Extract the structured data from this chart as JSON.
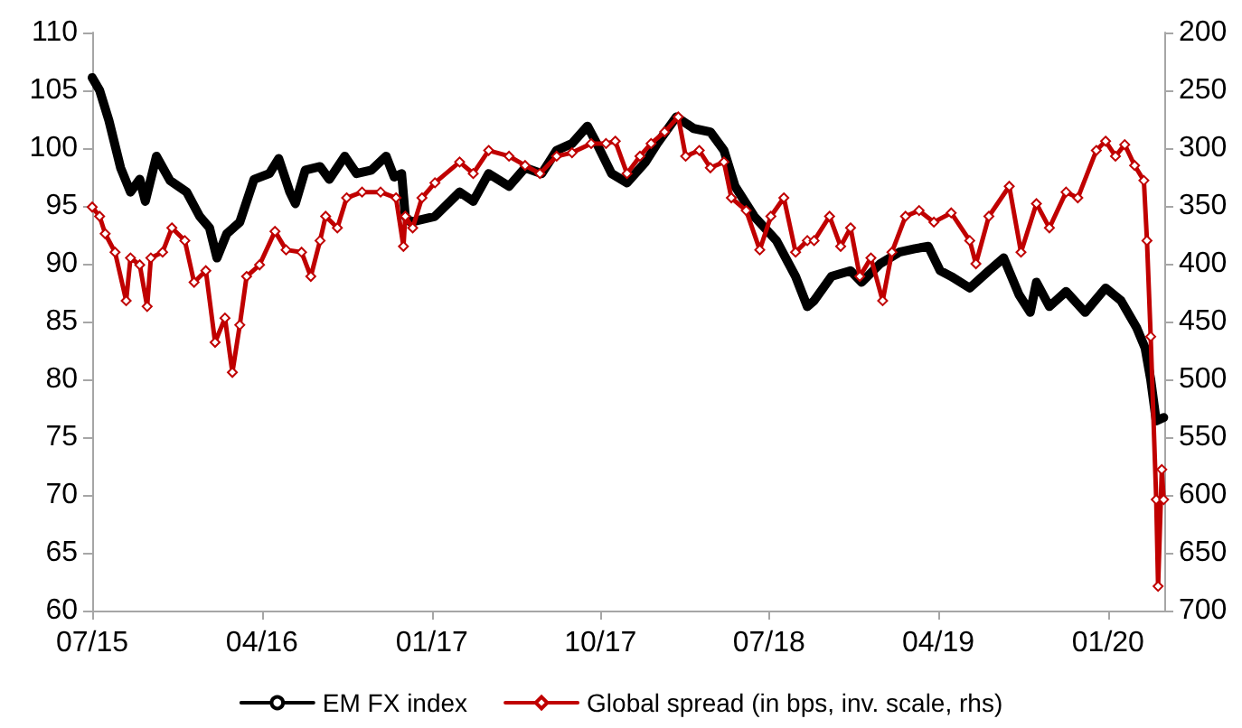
{
  "chart_data": {
    "type": "line",
    "xlim": [
      "2015-07-01",
      "2020-04-01"
    ],
    "xticks": [
      {
        "value": "2015-07-01",
        "label": "07/15"
      },
      {
        "value": "2016-04-01",
        "label": "04/16"
      },
      {
        "value": "2017-01-01",
        "label": "01/17"
      },
      {
        "value": "2017-10-01",
        "label": "10/17"
      },
      {
        "value": "2018-07-01",
        "label": "07/18"
      },
      {
        "value": "2019-04-01",
        "label": "04/19"
      },
      {
        "value": "2020-01-01",
        "label": "01/20"
      }
    ],
    "ylim": [
      60,
      110
    ],
    "yticks": [
      60,
      65,
      70,
      75,
      80,
      85,
      90,
      95,
      100,
      105,
      110
    ],
    "y2lim": [
      700,
      200
    ],
    "y2ticks": [
      200,
      250,
      300,
      350,
      400,
      450,
      500,
      550,
      600,
      650,
      700
    ],
    "grid": false,
    "legend": "bottom",
    "series": [
      {
        "name": "EM FX index",
        "color": "#000000",
        "marker": "none",
        "line_style": "solid",
        "x": [
          "2015-07-01",
          "2015-07-13",
          "2015-07-28",
          "2015-08-16",
          "2015-09-01",
          "2015-09-16",
          "2015-09-25",
          "2015-10-13",
          "2015-11-04",
          "2015-12-01",
          "2015-12-22",
          "2016-01-07",
          "2016-01-19",
          "2016-02-04",
          "2016-02-25",
          "2016-03-19",
          "2016-04-13",
          "2016-04-28",
          "2016-05-16",
          "2016-05-25",
          "2016-06-10",
          "2016-07-04",
          "2016-07-19",
          "2016-08-13",
          "2016-09-01",
          "2016-09-25",
          "2016-10-19",
          "2016-11-01",
          "2016-11-13",
          "2016-11-19",
          "2016-11-28",
          "2017-01-06",
          "2017-02-15",
          "2017-03-09",
          "2017-04-03",
          "2017-05-06",
          "2017-06-01",
          "2017-06-28",
          "2017-07-22",
          "2017-08-16",
          "2017-09-10",
          "2017-09-25",
          "2017-10-19",
          "2017-11-13",
          "2017-12-13",
          "2018-01-01",
          "2018-02-01",
          "2018-03-01",
          "2018-03-28",
          "2018-04-19",
          "2018-05-07",
          "2018-06-07",
          "2018-07-13",
          "2018-08-13",
          "2018-09-01",
          "2018-09-12",
          "2018-10-10",
          "2018-11-10",
          "2018-11-28",
          "2018-12-28",
          "2019-01-28",
          "2019-02-22",
          "2019-03-16",
          "2019-04-04",
          "2019-04-22",
          "2019-05-22",
          "2019-06-22",
          "2019-07-16",
          "2019-08-10",
          "2019-08-28",
          "2019-09-07",
          "2019-09-28",
          "2019-10-25",
          "2019-11-25",
          "2019-12-28",
          "2020-01-22",
          "2020-02-16",
          "2020-03-01",
          "2020-03-10",
          "2020-03-19",
          "2020-03-31"
        ],
        "values": [
          106.1,
          105,
          102.4,
          98.3,
          96.2,
          97.3,
          95.4,
          99.3,
          97.2,
          96.2,
          94.1,
          93.1,
          90.5,
          92.6,
          93.6,
          97.3,
          97.8,
          99.1,
          96.2,
          95.2,
          98.1,
          98.4,
          97.3,
          99.3,
          97.8,
          98.1,
          99.3,
          97.5,
          97.8,
          94.1,
          93.6,
          94.1,
          96.2,
          95.4,
          97.8,
          96.7,
          98.3,
          97.8,
          99.8,
          100.4,
          101.9,
          100.4,
          97.8,
          97.0,
          98.8,
          100.4,
          102.7,
          101.7,
          101.4,
          99.8,
          96.7,
          94.1,
          92.0,
          88.9,
          86.3,
          86.8,
          88.9,
          89.4,
          88.4,
          90.0,
          91.0,
          91.3,
          91.5,
          89.4,
          88.9,
          87.9,
          89.4,
          90.5,
          87.3,
          85.8,
          88.4,
          86.3,
          87.6,
          85.8,
          87.9,
          86.8,
          84.5,
          82.7,
          80.0,
          76.4,
          76.7
        ]
      },
      {
        "name": "Global spread (in bps, inv. scale, rhs)",
        "color": "#c00000",
        "axis": "y2",
        "marker": "diamond",
        "line_style": "solid",
        "x": [
          "2015-07-01",
          "2015-07-13",
          "2015-07-22",
          "2015-08-07",
          "2015-08-25",
          "2015-09-01",
          "2015-09-16",
          "2015-09-28",
          "2015-10-04",
          "2015-10-23",
          "2015-11-07",
          "2015-11-28",
          "2015-12-13",
          "2016-01-01",
          "2016-01-16",
          "2016-02-01",
          "2016-02-13",
          "2016-02-25",
          "2016-03-07",
          "2016-03-28",
          "2016-04-22",
          "2016-05-10",
          "2016-06-04",
          "2016-06-19",
          "2016-07-04",
          "2016-07-13",
          "2016-08-01",
          "2016-08-16",
          "2016-09-10",
          "2016-10-10",
          "2016-11-04",
          "2016-11-16",
          "2016-11-19",
          "2016-12-01",
          "2016-12-16",
          "2017-01-06",
          "2017-02-15",
          "2017-03-09",
          "2017-04-03",
          "2017-05-06",
          "2017-06-01",
          "2017-06-25",
          "2017-07-22",
          "2017-08-16",
          "2017-09-16",
          "2017-10-10",
          "2017-10-25",
          "2017-11-13",
          "2017-12-04",
          "2017-12-22",
          "2018-01-13",
          "2018-02-04",
          "2018-02-16",
          "2018-03-10",
          "2018-03-28",
          "2018-04-19",
          "2018-05-01",
          "2018-05-25",
          "2018-06-16",
          "2018-07-04",
          "2018-07-25",
          "2018-08-13",
          "2018-09-01",
          "2018-09-12",
          "2018-10-07",
          "2018-10-25",
          "2018-11-10",
          "2018-11-25",
          "2018-12-13",
          "2019-01-01",
          "2019-01-16",
          "2019-02-07",
          "2019-03-01",
          "2019-03-25",
          "2019-04-22",
          "2019-05-22",
          "2019-06-01",
          "2019-06-22",
          "2019-07-25",
          "2019-08-13",
          "2019-09-07",
          "2019-09-28",
          "2019-10-25",
          "2019-11-13",
          "2019-12-13",
          "2019-12-28",
          "2020-01-13",
          "2020-01-28",
          "2020-02-13",
          "2020-02-28",
          "2020-03-04",
          "2020-03-10",
          "2020-03-19",
          "2020-03-22",
          "2020-03-28",
          "2020-03-31"
        ],
        "values": [
          351,
          359,
          374,
          390,
          432,
          395,
          401,
          437,
          395,
          390,
          369,
          380,
          416,
          406,
          468,
          447,
          494,
          453,
          411,
          401,
          372,
          388,
          390,
          411,
          380,
          359,
          369,
          343,
          338,
          338,
          343,
          385,
          359,
          369,
          343,
          330,
          312,
          322,
          302,
          307,
          315,
          322,
          307,
          304,
          296,
          296,
          294,
          322,
          307,
          296,
          286,
          273,
          307,
          302,
          317,
          312,
          343,
          354,
          388,
          359,
          343,
          390,
          380,
          380,
          359,
          385,
          369,
          411,
          395,
          432,
          390,
          359,
          354,
          364,
          356,
          380,
          400,
          359,
          333,
          390,
          348,
          369,
          338,
          343,
          302,
          294,
          307,
          297,
          315,
          328,
          380,
          463,
          604,
          679,
          578,
          604
        ]
      }
    ]
  }
}
